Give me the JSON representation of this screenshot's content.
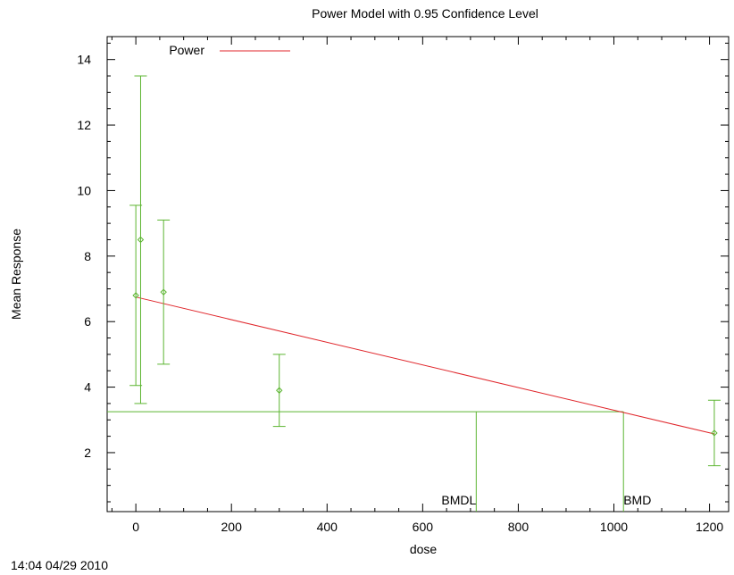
{
  "chart_data": {
    "type": "scatter",
    "title": "Power Model with 0.95 Confidence Level",
    "xlabel": "dose",
    "ylabel": "Mean Response",
    "timestamp": "14:04 04/29 2010",
    "xlim": [
      -60,
      1240
    ],
    "ylim": [
      0.2,
      14.7
    ],
    "xticks": [
      0,
      200,
      400,
      600,
      800,
      1000,
      1200
    ],
    "yticks": [
      2,
      4,
      6,
      8,
      10,
      12,
      14
    ],
    "grid": false,
    "legend": {
      "position": "top-left",
      "label": "Power"
    },
    "colors": {
      "data": "#5cb531",
      "model": "#e0262b",
      "frame": "#000000"
    },
    "points": [
      {
        "x": 0,
        "y": 6.8,
        "lower": 4.05,
        "upper": 9.55
      },
      {
        "x": 10,
        "y": 8.5,
        "lower": 3.5,
        "upper": 13.5
      },
      {
        "x": 58,
        "y": 6.9,
        "lower": 4.7,
        "upper": 9.1
      },
      {
        "x": 300,
        "y": 3.9,
        "lower": 2.8,
        "upper": 5.0
      },
      {
        "x": 1210,
        "y": 2.6,
        "lower": 1.6,
        "upper": 3.6
      }
    ],
    "model_line": {
      "name": "Power",
      "x": [
        0,
        1210
      ],
      "y": [
        6.75,
        2.57
      ]
    },
    "bmr_level": 3.25,
    "bmdl": {
      "label": "BMDL",
      "x": 712
    },
    "bmd": {
      "label": "BMD",
      "x": 1020
    }
  }
}
